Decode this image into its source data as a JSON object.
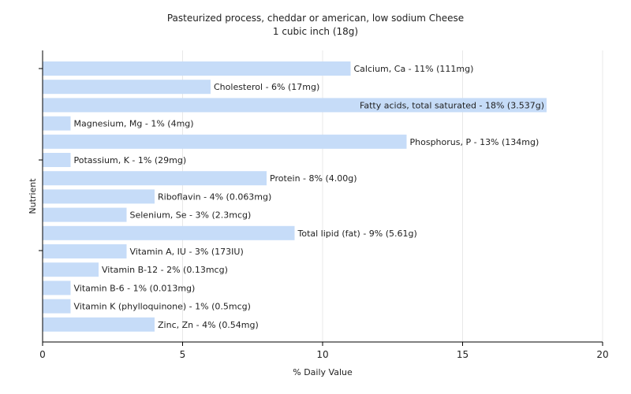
{
  "chart_data": {
    "type": "bar",
    "orientation": "horizontal",
    "title": "Pasteurized process, cheddar or american, low sodium Cheese",
    "subtitle": "1 cubic inch (18g)",
    "xlabel": "% Daily Value",
    "ylabel": "Nutrient",
    "xlim": [
      0,
      20
    ],
    "xticks": [
      0,
      5,
      10,
      15,
      20
    ],
    "grid": true,
    "bar_color": "#c6dcf8",
    "categories": [
      "Calcium, Ca",
      "Cholesterol",
      "Fatty acids, total saturated",
      "Magnesium, Mg",
      "Phosphorus, P",
      "Potassium, K",
      "Protein",
      "Riboflavin",
      "Selenium, Se",
      "Total lipid (fat)",
      "Vitamin A, IU",
      "Vitamin B-12",
      "Vitamin B-6",
      "Vitamin K (phylloquinone)",
      "Zinc, Zn"
    ],
    "values": [
      11,
      6,
      18,
      1,
      13,
      1,
      8,
      4,
      3,
      9,
      3,
      2,
      1,
      1,
      4
    ],
    "labels": [
      "Calcium, Ca - 11% (111mg)",
      "Cholesterol - 6% (17mg)",
      "Fatty acids, total saturated - 18% (3.537g)",
      "Magnesium, Mg - 1% (4mg)",
      "Phosphorus, P - 13% (134mg)",
      "Potassium, K - 1% (29mg)",
      "Protein - 8% (4.00g)",
      "Riboflavin - 4% (0.063mg)",
      "Selenium, Se - 3% (2.3mcg)",
      "Total lipid (fat) - 9% (5.61g)",
      "Vitamin A, IU - 3% (173IU)",
      "Vitamin B-12 - 2% (0.13mcg)",
      "Vitamin B-6 - 1% (0.013mg)",
      "Vitamin K (phylloquinone) - 1% (0.5mcg)",
      "Zinc, Zn - 4% (0.54mg)"
    ]
  }
}
